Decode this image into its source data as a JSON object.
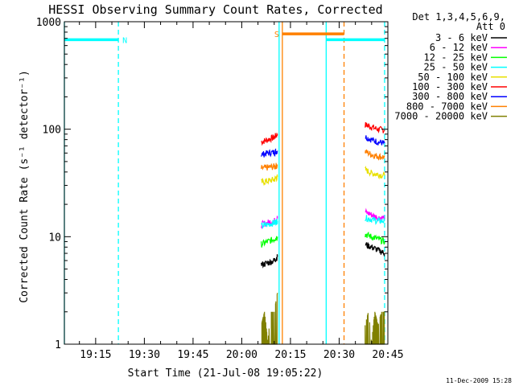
{
  "chart_data": {
    "type": "line",
    "title": "HESSI Observing Summary Count Rates, Corrected",
    "xlabel": "Start Time (21-Jul-08 19:05:22)",
    "ylabel": "Corrected Count Rate (s⁻¹ detector⁻¹)",
    "yscale": "log",
    "ylim": [
      1,
      1000
    ],
    "xlim": [
      "19:05:22",
      "20:45:00"
    ],
    "x_ticks": [
      "19:15",
      "19:30",
      "19:45",
      "20:00",
      "20:15",
      "20:30",
      "20:45"
    ],
    "y_ticks": [
      "1",
      "10",
      "100",
      "1000"
    ],
    "grid": false,
    "legend": {
      "placement": "outside-right",
      "header": [
        "Det 1,3,4,5,6,9,",
        "Att 0"
      ],
      "entries": [
        {
          "label": "3 - 6 keV",
          "color": "#000000"
        },
        {
          "label": "6 - 12 keV",
          "color": "#ff00ff"
        },
        {
          "label": "12 - 25 keV",
          "color": "#00ff00"
        },
        {
          "label": "25 - 50 keV",
          "color": "#00ffff"
        },
        {
          "label": "50 - 100 keV",
          "color": "#e8e000"
        },
        {
          "label": "100 - 300 keV",
          "color": "#ff0000"
        },
        {
          "label": "300 - 800 keV",
          "color": "#0000ff"
        },
        {
          "label": "800 - 7000 keV",
          "color": "#ff8000"
        },
        {
          "label": "7000 - 20000 keV",
          "color": "#808000"
        }
      ]
    },
    "series": [
      {
        "color": "#ff0000",
        "segments": [
          {
            "x": [
              "20:06",
              "20:08",
              "20:10",
              "20:11"
            ],
            "y": [
              76,
              80,
              84,
              90
            ]
          },
          {
            "x": [
              "20:38",
              "20:40",
              "20:42",
              "20:44"
            ],
            "y": [
              110,
              105,
              100,
              98
            ]
          }
        ]
      },
      {
        "color": "#0000ff",
        "segments": [
          {
            "x": [
              "20:06",
              "20:08",
              "20:10",
              "20:11"
            ],
            "y": [
              58,
              60,
              61,
              63
            ]
          },
          {
            "x": [
              "20:38",
              "20:40",
              "20:42",
              "20:44"
            ],
            "y": [
              85,
              80,
              76,
              74
            ]
          }
        ]
      },
      {
        "color": "#ff8000",
        "segments": [
          {
            "x": [
              "20:06",
              "20:08",
              "20:10",
              "20:11"
            ],
            "y": [
              43,
              44,
              45,
              46
            ]
          },
          {
            "x": [
              "20:38",
              "20:40",
              "20:42",
              "20:44"
            ],
            "y": [
              62,
              58,
              56,
              55
            ]
          }
        ]
      },
      {
        "color": "#e8e000",
        "segments": [
          {
            "x": [
              "20:06",
              "20:08",
              "20:10",
              "20:11"
            ],
            "y": [
              32,
              33,
              34,
              36
            ]
          },
          {
            "x": [
              "20:38",
              "20:40",
              "20:42",
              "20:44"
            ],
            "y": [
              42,
              39,
              38,
              37
            ]
          }
        ]
      },
      {
        "color": "#ff00ff",
        "segments": [
          {
            "x": [
              "20:06",
              "20:08",
              "20:10",
              "20:11"
            ],
            "y": [
              13,
              13.5,
              14,
              15
            ]
          },
          {
            "x": [
              "20:38",
              "20:40",
              "20:42",
              "20:44"
            ],
            "y": [
              17,
              16,
              15,
              15
            ]
          }
        ]
      },
      {
        "color": "#00ffff",
        "segments": [
          {
            "x": [
              "20:06",
              "20:08",
              "20:10",
              "20:11"
            ],
            "y": [
              12.5,
              13,
              13.5,
              14
            ]
          },
          {
            "x": [
              "20:38",
              "20:40",
              "20:42",
              "20:44"
            ],
            "y": [
              15,
              14.5,
              14,
              14
            ]
          }
        ]
      },
      {
        "color": "#00ff00",
        "segments": [
          {
            "x": [
              "20:06",
              "20:08",
              "20:10",
              "20:11"
            ],
            "y": [
              8.5,
              9,
              9.5,
              10
            ]
          },
          {
            "x": [
              "20:38",
              "20:40",
              "20:42",
              "20:44"
            ],
            "y": [
              10.5,
              10,
              9.5,
              9
            ]
          }
        ]
      },
      {
        "color": "#000000",
        "segments": [
          {
            "x": [
              "20:06",
              "20:08",
              "20:10",
              "20:11"
            ],
            "y": [
              5.5,
              5.7,
              6,
              6.5
            ]
          },
          {
            "x": [
              "20:38",
              "20:40",
              "20:42",
              "20:44"
            ],
            "y": [
              8.5,
              8,
              7.5,
              7
            ]
          }
        ]
      },
      {
        "color": "#808000",
        "segments": [
          {
            "x": [
              "20:06",
              "20:07",
              "20:08",
              "20:09",
              "20:10",
              "20:11"
            ],
            "y": [
              1.5,
              2,
              1,
              2,
              2,
              3
            ]
          },
          {
            "x": [
              "20:38",
              "20:39",
              "20:40",
              "20:41",
              "20:42",
              "20:43",
              "20:44"
            ],
            "y": [
              1.5,
              2,
              1,
              2,
              1.5,
              2,
              2
            ]
          }
        ]
      }
    ],
    "overlays": {
      "solid_lines": [
        {
          "x": "19:05:22",
          "color": "#00ffff"
        },
        {
          "x": "20:11:30",
          "color": "#00ffff"
        },
        {
          "x": "20:12:30",
          "color": "#ff8000"
        },
        {
          "x": "20:26:00",
          "color": "#00ffff"
        }
      ],
      "dashed_lines": [
        {
          "x": "19:22:00",
          "color": "#00ffff"
        },
        {
          "x": "20:31:30",
          "color": "#ff8000"
        },
        {
          "x": "20:44:00",
          "color": "#00ffff"
        }
      ],
      "bars": [
        {
          "x_start": "19:05:22",
          "x_end": "19:22:00",
          "y": 680,
          "color": "#00ffff",
          "label": "N"
        },
        {
          "x_start": "20:12:30",
          "x_end": "20:31:30",
          "y": 770,
          "color": "#ff8000",
          "label": "S"
        },
        {
          "x_start": "20:26:00",
          "x_end": "20:44:00",
          "y": 680,
          "color": "#00ffff",
          "label": ""
        }
      ]
    }
  },
  "footer": {
    "date": "11-Dec-2009 15:28"
  }
}
